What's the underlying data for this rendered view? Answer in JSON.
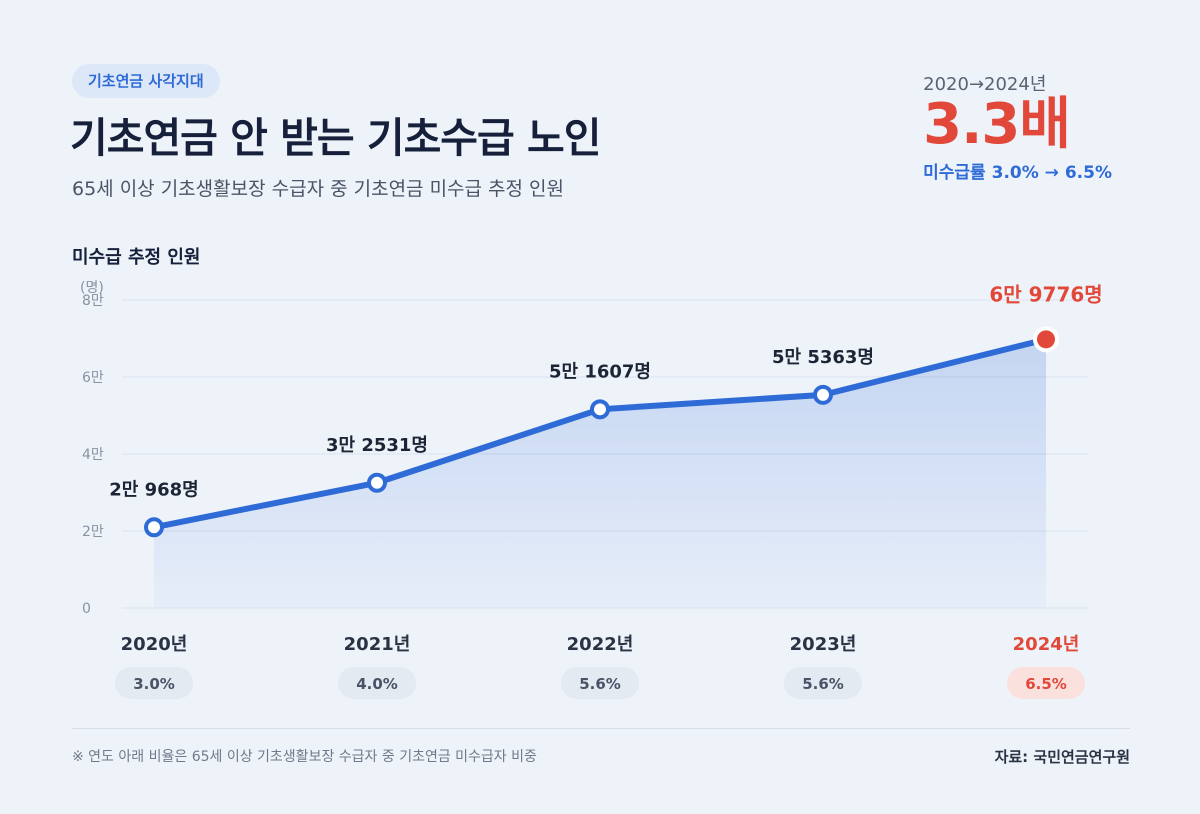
{
  "tag_label": "기초연금 사각지대",
  "title": "기초연금 안 받는 기초수급 노인",
  "subtitle": "65세 이상 기초생활보장 수급자 중 기초연금 미수급 추정 인원",
  "kpi": {
    "period": "2020→2024년",
    "value": "3.3배",
    "rate_text": "미수급률 3.0% → 6.5%"
  },
  "chart_heading": "미수급 추정 인원",
  "footnote": "※ 연도 아래 비율은 65세 이상 기초생활보장 수급자 중 기초연금 미수급자 비중",
  "source": "자료: 국민연금연구원",
  "colors": {
    "line": "#2f6bd6",
    "highlight": "#e2483a",
    "grid": "#dbe3ee",
    "axis_text": "#8a93a3"
  },
  "chart_data": {
    "type": "line",
    "title": "미수급 추정 인원",
    "ylabel": "(명)",
    "ylim": [
      0,
      80000
    ],
    "yticks": [
      {
        "value": 0,
        "label": "0"
      },
      {
        "value": 20000,
        "label": "2만"
      },
      {
        "value": 40000,
        "label": "4만"
      },
      {
        "value": 60000,
        "label": "6만"
      },
      {
        "value": 80000,
        "label": "8만"
      }
    ],
    "grid": true,
    "categories": [
      "2020년",
      "2021년",
      "2022년",
      "2023년",
      "2024년"
    ],
    "values": [
      20968,
      32531,
      51607,
      55363,
      69776
    ],
    "value_labels": [
      "2만 968명",
      "3만 2531명",
      "5만 1607명",
      "5만 5363명",
      "6만 9776명"
    ],
    "rates": [
      "3.0%",
      "4.0%",
      "5.6%",
      "5.6%",
      "6.5%"
    ],
    "highlight_index": 4
  }
}
